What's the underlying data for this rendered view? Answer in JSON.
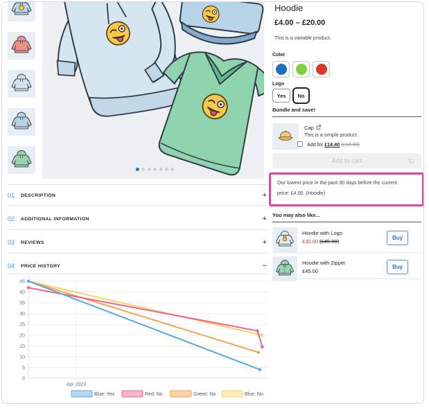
{
  "product": {
    "title": "Hoodie",
    "price_range": "£4.00 – £20.00",
    "type_note": "This is a variable product.",
    "color_label": "Color",
    "colors": [
      {
        "name": "blue",
        "hex": "#1f6fc2"
      },
      {
        "name": "green",
        "hex": "#7ed03f"
      },
      {
        "name": "red",
        "hex": "#e0342f"
      }
    ],
    "logo_label": "Logo",
    "logo_options": [
      {
        "label": "Yes",
        "selected": false
      },
      {
        "label": "No",
        "selected": true
      }
    ],
    "bundle": {
      "heading": "Bundle and save!",
      "item": {
        "name": "Cap",
        "description": "This is a simple product.",
        "add_label": "Add for",
        "price": "£14.40",
        "regular_price": "(£18.00)"
      }
    },
    "add_to_cart_label": "Add to cart",
    "lowest_price_notice": "Our lowest price in the past 30 days before the current price: £4.00. (Hoodie)",
    "related": {
      "heading": "You may also like...",
      "items": [
        {
          "name": "Hoodie with Logo",
          "sale_price": "£30.00",
          "regular_price": "(£45.00)",
          "buy_label": "Buy"
        },
        {
          "name": "Hoodie with Zipper",
          "price": "£45.00",
          "buy_label": "Buy"
        }
      ]
    }
  },
  "gallery": {
    "dots_count": 7,
    "active_dot": 0
  },
  "accordion": {
    "items": [
      {
        "num": "01",
        "label": "DESCRIPTION",
        "toggle": "+"
      },
      {
        "num": "02",
        "label": "ADDITIONAL INFORMATION",
        "toggle": "+"
      },
      {
        "num": "03",
        "label": "REVIEWS",
        "toggle": "+"
      },
      {
        "num": "04",
        "label": "PRICE HISTORY",
        "toggle": "−"
      }
    ]
  },
  "chart_data": {
    "type": "line",
    "x_tick_labels": [
      "Apr 2023"
    ],
    "ylim": [
      0,
      45
    ],
    "y_ticks": [
      45,
      40,
      35,
      30,
      25,
      20,
      15,
      10,
      5,
      0
    ],
    "grid": true,
    "legend_position": "bottom",
    "series": [
      {
        "name": "Blue: Yes",
        "color": "#55a7e5",
        "fill": "#b5d9f4",
        "points": [
          [
            0,
            45
          ],
          [
            0.968,
            4
          ]
        ]
      },
      {
        "name": "Red: No",
        "color": "#ef6291",
        "fill": "#f9b6cb",
        "points": [
          [
            0,
            42
          ],
          [
            0.958,
            22
          ],
          [
            0.978,
            14.5
          ]
        ]
      },
      {
        "name": "Green: No",
        "color": "#f7a24e",
        "fill": "#fbd4a7",
        "points": [
          [
            0,
            45
          ],
          [
            0.962,
            12
          ]
        ]
      },
      {
        "name": "Blue: No",
        "color": "#f9d263",
        "fill": "#fdedb9",
        "points": [
          [
            0,
            45
          ],
          [
            0.975,
            20
          ]
        ]
      }
    ]
  }
}
